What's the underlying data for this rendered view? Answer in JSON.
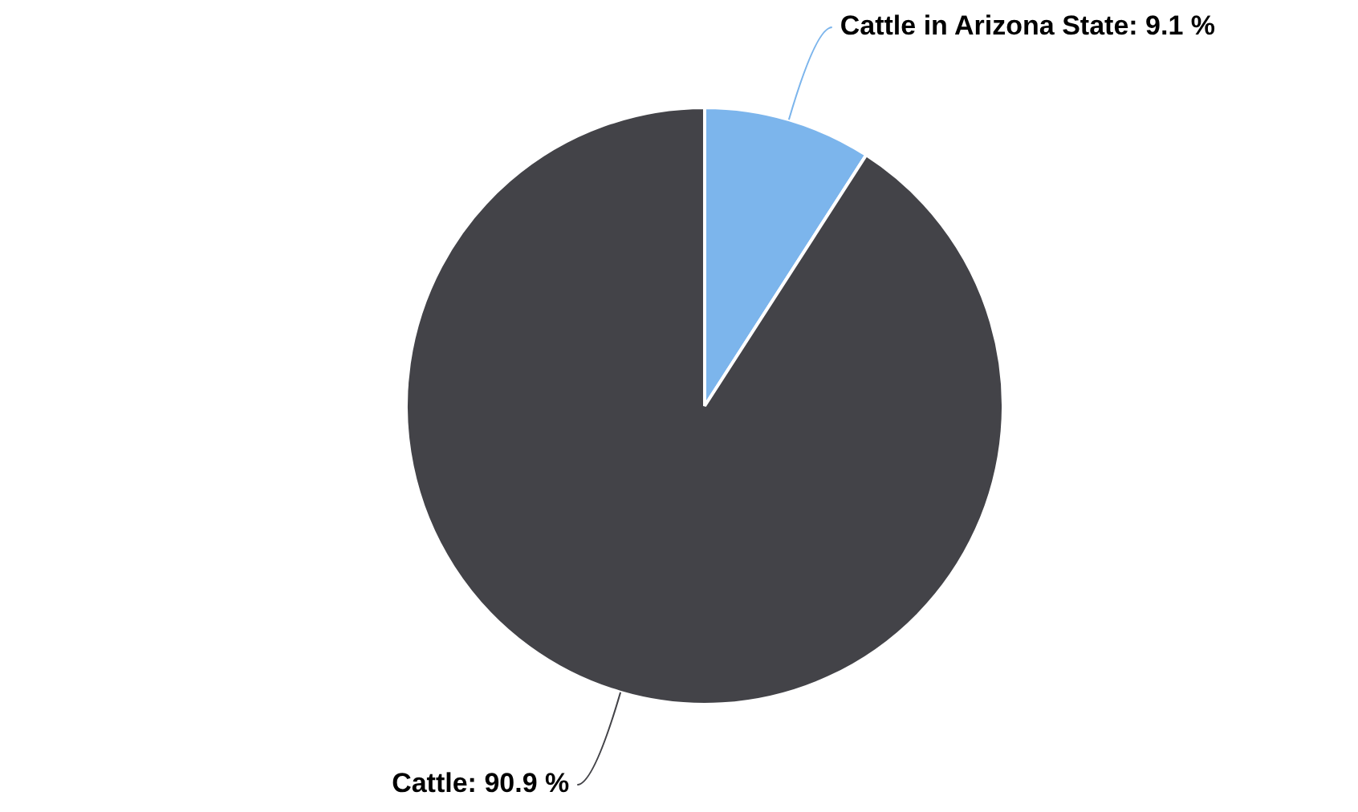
{
  "chart_data": {
    "type": "pie",
    "categories": [
      "Cattle in Arizona State",
      "Cattle"
    ],
    "values": [
      9.1,
      90.9
    ],
    "colors": [
      "#7cb5ec",
      "#434348"
    ],
    "value_labels": [
      "9.1 %",
      "90.9 %"
    ]
  }
}
